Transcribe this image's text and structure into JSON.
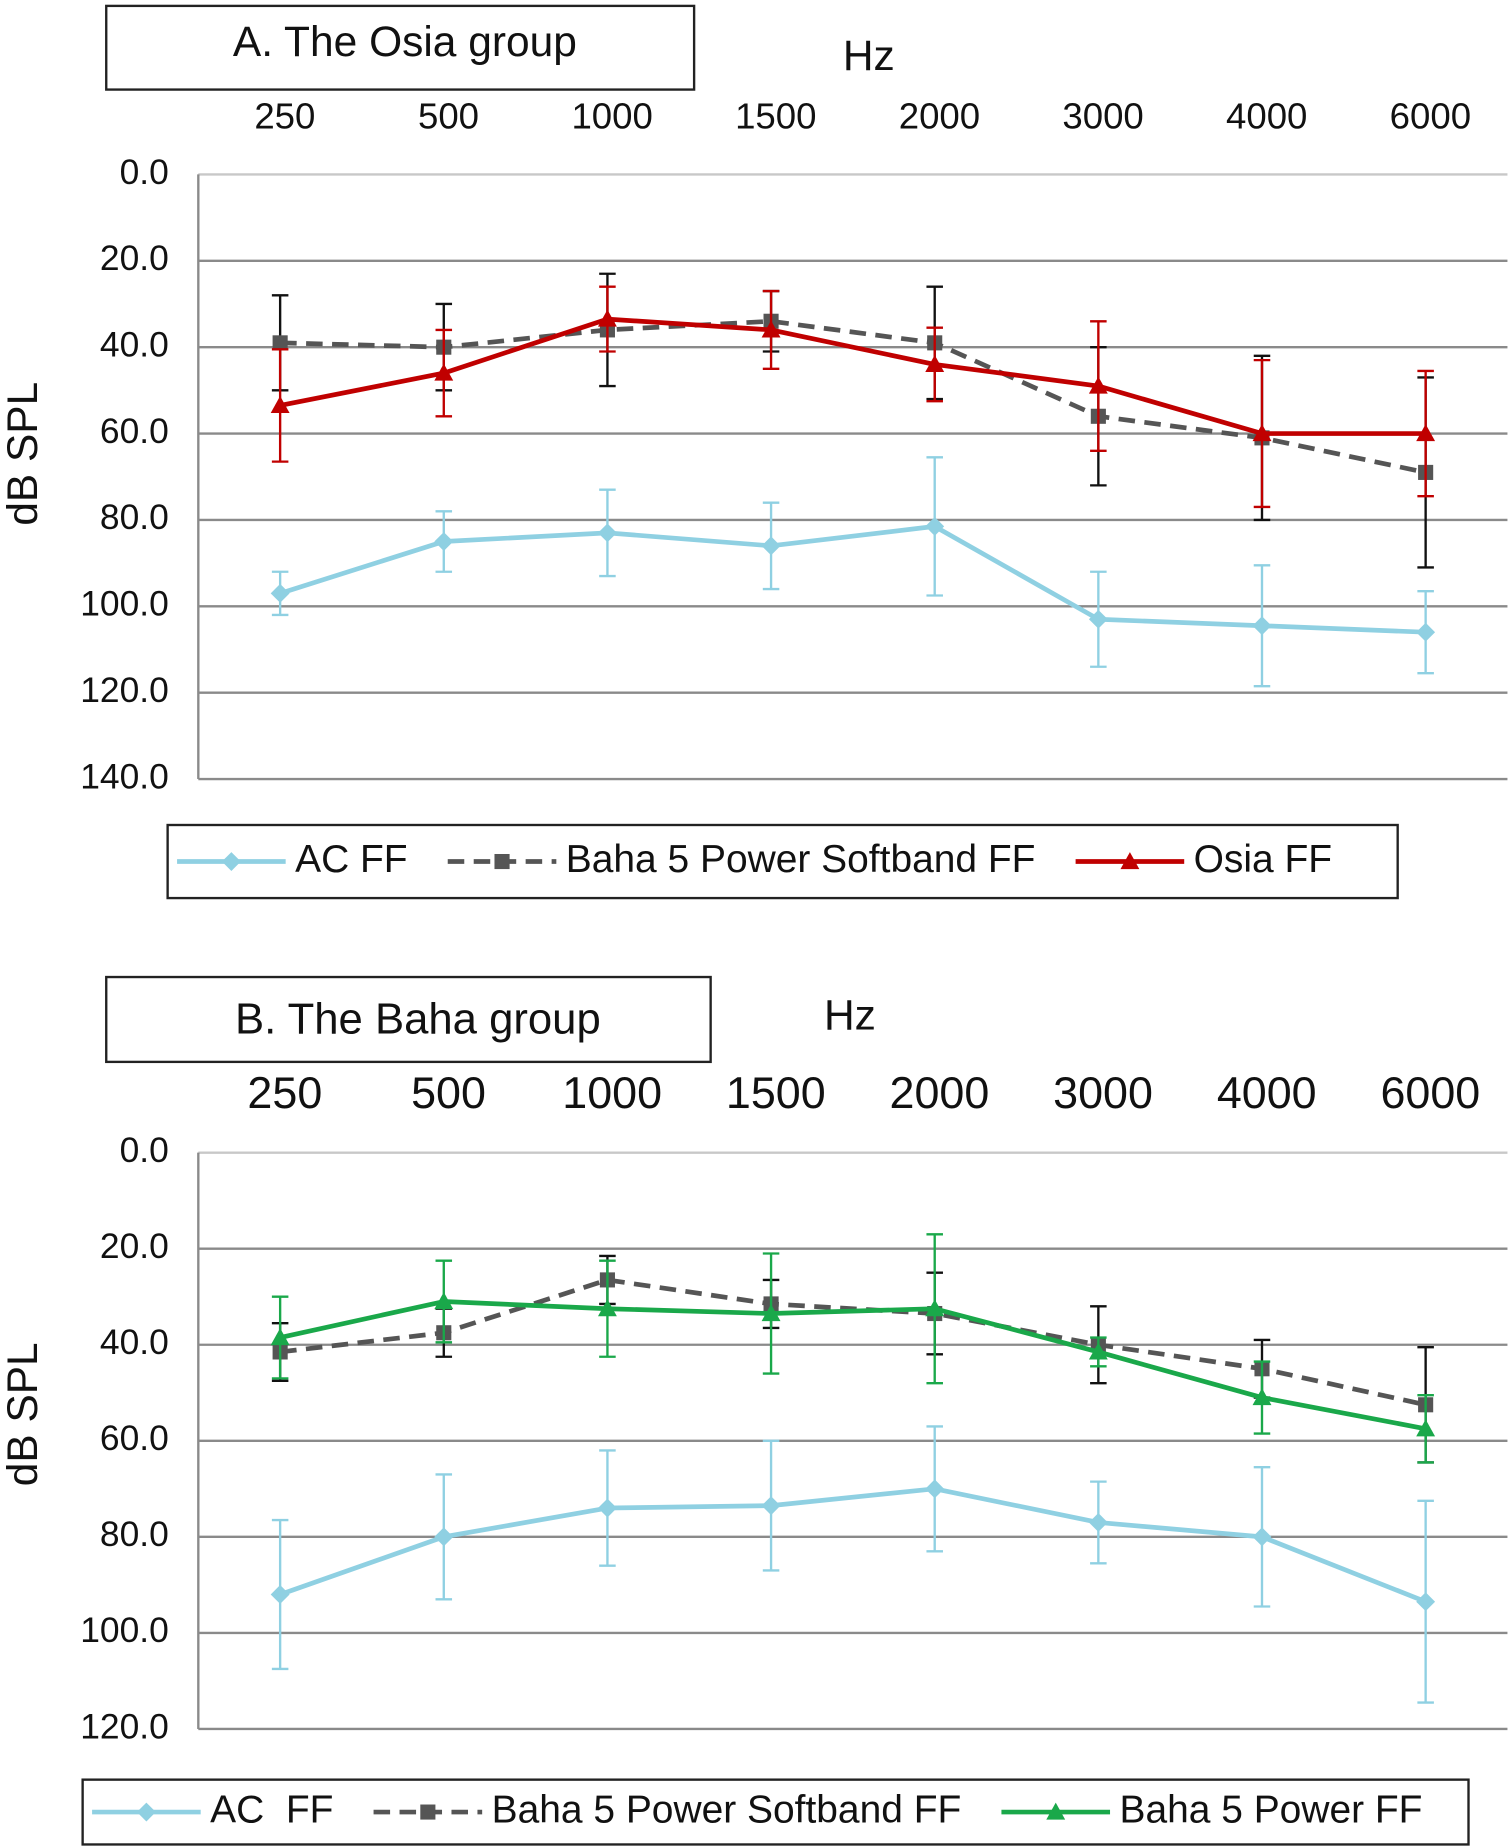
{
  "chart_data": [
    {
      "type": "line",
      "title": "A. The Osia group",
      "x_label": "Hz",
      "y_label": "dB SPL",
      "categories": [
        "250",
        "500",
        "1000",
        "1500",
        "2000",
        "3000",
        "4000",
        "6000"
      ],
      "ylim": [
        0,
        140
      ],
      "y_inverted": true,
      "yticks": [
        {
          "value": 0,
          "label": "0.0"
        },
        {
          "value": 20,
          "label": "20.0"
        },
        {
          "value": 40,
          "label": "40.0"
        },
        {
          "value": 60,
          "label": "60.0"
        },
        {
          "value": 80,
          "label": "80.0"
        },
        {
          "value": 100,
          "label": "100.0"
        },
        {
          "value": 120,
          "label": "120.0"
        },
        {
          "value": 140,
          "label": "140.0"
        }
      ],
      "grid": true,
      "legend": "bottom",
      "series": [
        {
          "name": "AC FF",
          "color": "#8fd0e2",
          "marker": "diamond",
          "dashed": false,
          "error_color": "#8fd0e2",
          "values": [
            97,
            85,
            83,
            86,
            81.5,
            103,
            104.5,
            106
          ],
          "errors": [
            5,
            7,
            10,
            10,
            16,
            11,
            14,
            9.5
          ]
        },
        {
          "name": "Baha 5 Power Softband FF",
          "color": "#555555",
          "marker": "square",
          "dashed": true,
          "error_color": "#111111",
          "values": [
            39,
            40,
            36,
            34,
            39,
            56,
            61,
            69
          ],
          "errors": [
            11,
            10,
            13,
            7,
            13,
            16,
            19,
            22
          ]
        },
        {
          "name": "Osia FF",
          "color": "#c00000",
          "marker": "triangle",
          "dashed": false,
          "error_color": "#c00000",
          "values": [
            53.5,
            46,
            33.5,
            36,
            44,
            49,
            60,
            60
          ],
          "errors": [
            13,
            10,
            7.5,
            9,
            8.5,
            15,
            17,
            14.5
          ]
        }
      ]
    },
    {
      "type": "line",
      "title": "B. The Baha group",
      "x_label": "Hz",
      "y_label": "dB SPL",
      "categories": [
        "250",
        "500",
        "1000",
        "1500",
        "2000",
        "3000",
        "4000",
        "6000"
      ],
      "ylim": [
        0,
        120
      ],
      "y_inverted": true,
      "yticks": [
        {
          "value": 0,
          "label": "0.0"
        },
        {
          "value": 20,
          "label": "20.0"
        },
        {
          "value": 40,
          "label": "40.0"
        },
        {
          "value": 60,
          "label": "60.0"
        },
        {
          "value": 80,
          "label": "80.0"
        },
        {
          "value": 100,
          "label": "100.0"
        },
        {
          "value": 120,
          "label": "120.0"
        }
      ],
      "grid": true,
      "legend": "bottom",
      "series": [
        {
          "name": "AC  FF",
          "color": "#8fd0e2",
          "marker": "diamond",
          "dashed": false,
          "error_color": "#8fd0e2",
          "values": [
            92,
            80,
            74,
            73.5,
            70,
            77,
            80,
            93.5
          ],
          "errors": [
            15.5,
            13,
            12,
            13.5,
            13,
            8.5,
            14.5,
            21
          ]
        },
        {
          "name": "Baha 5 Power Softband FF",
          "color": "#555555",
          "marker": "square",
          "dashed": true,
          "error_color": "#111111",
          "values": [
            41.5,
            37.5,
            26.5,
            31.5,
            33.5,
            40,
            45,
            52.5
          ],
          "errors": [
            6,
            5,
            5,
            5,
            8.5,
            8,
            6,
            12
          ]
        },
        {
          "name": "Baha 5 Power FF",
          "color": "#1aa84a",
          "marker": "triangle",
          "dashed": false,
          "error_color": "#1aa84a",
          "values": [
            38.5,
            31,
            32.5,
            33.5,
            32.5,
            41.5,
            51,
            57.5
          ],
          "errors": [
            8.5,
            8.5,
            10,
            12.5,
            15.5,
            3,
            7.5,
            7
          ]
        }
      ]
    }
  ]
}
